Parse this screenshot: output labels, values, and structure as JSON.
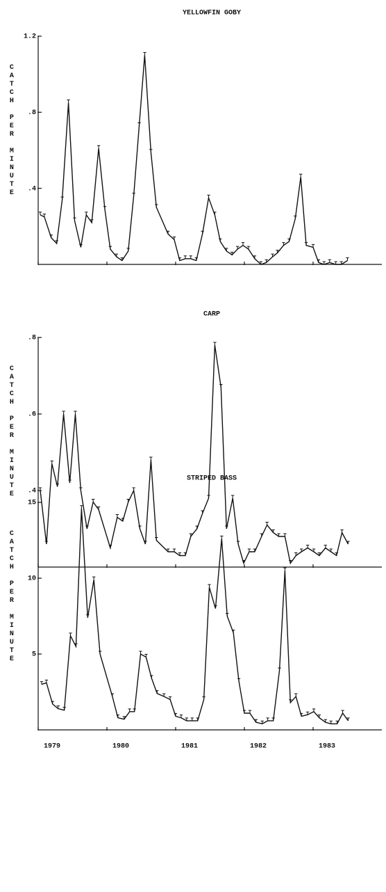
{
  "chart_data": [
    {
      "type": "line",
      "title": "YELLOWFIN GOBY",
      "y_label": "CATCH PER MINUTE",
      "color": "#111111",
      "x": [
        1979.03,
        1979.09,
        1979.19,
        1979.27,
        1979.35,
        1979.44,
        1979.53,
        1979.62,
        1979.7,
        1979.78,
        1979.88,
        1979.97,
        1980.05,
        1980.14,
        1980.22,
        1980.31,
        1980.39,
        1980.47,
        1980.55,
        1980.64,
        1980.72,
        1980.89,
        1980.98,
        1981.06,
        1981.14,
        1981.22,
        1981.3,
        1981.39,
        1981.48,
        1981.57,
        1981.65,
        1981.74,
        1981.82,
        1981.9,
        1981.98,
        1982.06,
        1982.15,
        1982.24,
        1982.32,
        1982.41,
        1982.48,
        1982.57,
        1982.65,
        1982.74,
        1982.82,
        1982.9,
        1983.0,
        1983.08,
        1983.16,
        1983.24,
        1983.33,
        1983.41,
        1983.5
      ],
      "values": [
        0.26,
        0.25,
        0.14,
        0.11,
        0.34,
        0.85,
        0.23,
        0.09,
        0.26,
        0.22,
        0.61,
        0.29,
        0.08,
        0.04,
        0.02,
        0.07,
        0.36,
        0.73,
        1.1,
        0.59,
        0.3,
        0.16,
        0.13,
        0.02,
        0.03,
        0.03,
        0.02,
        0.16,
        0.35,
        0.26,
        0.12,
        0.07,
        0.05,
        0.08,
        0.1,
        0.08,
        0.03,
        0,
        0.01,
        0.04,
        0.06,
        0.1,
        0.12,
        0.24,
        0.46,
        0.1,
        0.09,
        0.01,
        0,
        0.01,
        0,
        0,
        0.02
      ],
      "xlim": [
        1979,
        1984
      ],
      "ylim": [
        0,
        1.2
      ],
      "yticks": [
        {
          "value": 0.4,
          "label": ".4"
        },
        {
          "value": 0.8,
          "label": ".8"
        },
        {
          "value": 1.2,
          "label": "1.2"
        }
      ]
    },
    {
      "type": "line",
      "title": "CARP",
      "y_label": "CATCH PER MINUTE",
      "color": "#111111",
      "x": [
        1979.03,
        1979.12,
        1979.2,
        1979.28,
        1979.37,
        1979.46,
        1979.54,
        1979.62,
        1979.71,
        1979.8,
        1979.88,
        1980.05,
        1980.15,
        1980.23,
        1980.31,
        1980.39,
        1980.48,
        1980.56,
        1980.64,
        1980.72,
        1980.89,
        1980.98,
        1981.06,
        1981.14,
        1981.22,
        1981.31,
        1981.39,
        1981.48,
        1981.57,
        1981.66,
        1981.74,
        1981.83,
        1981.91,
        1981.99,
        1982.07,
        1982.15,
        1982.25,
        1982.33,
        1982.42,
        1982.5,
        1982.59,
        1982.67,
        1982.75,
        1982.83,
        1982.92,
        1983.01,
        1983.09,
        1983.18,
        1983.26,
        1983.34,
        1983.42,
        1983.51
      ],
      "values": [
        0.4,
        0.26,
        0.47,
        0.41,
        0.6,
        0.42,
        0.6,
        0.4,
        0.3,
        0.37,
        0.35,
        0.25,
        0.33,
        0.32,
        0.37,
        0.4,
        0.3,
        0.26,
        0.48,
        0.27,
        0.24,
        0.24,
        0.23,
        0.23,
        0.28,
        0.3,
        0.34,
        0.38,
        0.78,
        0.67,
        0.3,
        0.38,
        0.26,
        0.21,
        0.24,
        0.24,
        0.28,
        0.31,
        0.29,
        0.28,
        0.28,
        0.21,
        0.23,
        0.24,
        0.25,
        0.24,
        0.23,
        0.25,
        0.24,
        0.23,
        0.29,
        0.26
      ],
      "xlim": [
        1979,
        1984
      ],
      "ylim": [
        0.2,
        0.8
      ],
      "yticks": [
        {
          "value": 0.4,
          "label": ".4"
        },
        {
          "value": 0.6,
          "label": ".6"
        },
        {
          "value": 0.8,
          "label": ".8"
        }
      ]
    },
    {
      "type": "line",
      "title": "STRIPED BASS",
      "y_label": "CATCH PER MINUTE",
      "color": "#111111",
      "x": [
        1979.05,
        1979.12,
        1979.21,
        1979.29,
        1979.38,
        1979.47,
        1979.55,
        1979.63,
        1979.72,
        1979.81,
        1979.9,
        1980.08,
        1980.16,
        1980.25,
        1980.33,
        1980.4,
        1980.49,
        1980.57,
        1980.65,
        1980.73,
        1980.83,
        1980.92,
        1981.0,
        1981.08,
        1981.16,
        1981.24,
        1981.32,
        1981.41,
        1981.49,
        1981.58,
        1981.67,
        1981.75,
        1981.84,
        1981.92,
        1982.0,
        1982.08,
        1982.17,
        1982.26,
        1982.34,
        1982.42,
        1982.51,
        1982.59,
        1982.67,
        1982.75,
        1982.83,
        1982.92,
        1983.01,
        1983.09,
        1983.18,
        1983.26,
        1983.35,
        1983.43,
        1983.51
      ],
      "values": [
        3.0,
        3.1,
        1.7,
        1.4,
        1.3,
        6.2,
        5.5,
        14.6,
        7.4,
        9.9,
        5.0,
        2.2,
        0.8,
        0.7,
        1.2,
        1.2,
        5.0,
        4.8,
        3.4,
        2.4,
        2.2,
        2.0,
        0.9,
        0.8,
        0.6,
        0.6,
        0.6,
        2.0,
        9.4,
        8.0,
        12.6,
        7.5,
        6.4,
        3.2,
        1.1,
        1.1,
        0.5,
        0.4,
        0.6,
        0.6,
        3.9,
        10.5,
        1.8,
        2.2,
        0.9,
        1.0,
        1.2,
        0.8,
        0.5,
        0.4,
        0.4,
        1.1,
        0.6
      ],
      "xlim": [
        1979,
        1984
      ],
      "ylim": [
        0,
        15
      ],
      "yticks": [
        5,
        10,
        15
      ],
      "xticks": [
        1979,
        1980,
        1981,
        1982,
        1983
      ]
    }
  ]
}
